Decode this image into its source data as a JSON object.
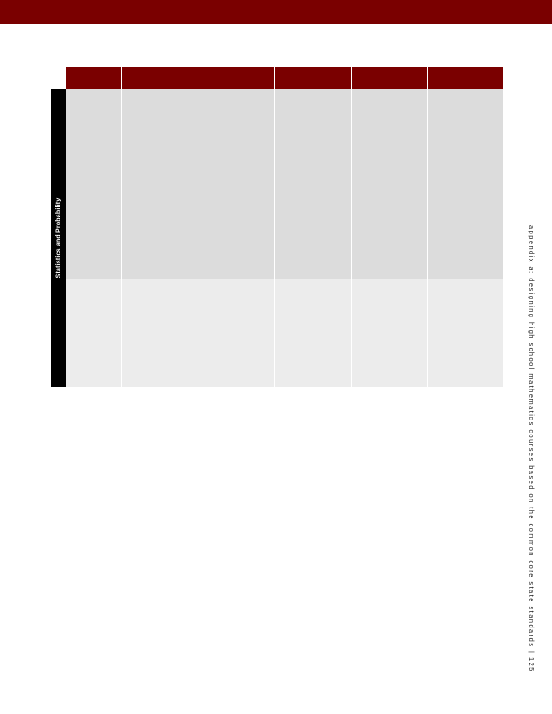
{
  "page": {
    "side_label": "Statistics and Probability",
    "footer_text": "appendix a: designing high school mathematics courses based on the common core state standards  |  125"
  },
  "colors": {
    "band": "#7a0000",
    "side_label_bg": "#000000",
    "row_a": "#dcdcdc",
    "row_b": "#ececec"
  },
  "table": {
    "header_row": [
      "",
      "",
      "",
      "",
      "",
      ""
    ],
    "rows": [
      [
        "",
        "",
        "",
        "",
        "",
        ""
      ],
      [
        "",
        "",
        "",
        "",
        "",
        ""
      ]
    ]
  }
}
